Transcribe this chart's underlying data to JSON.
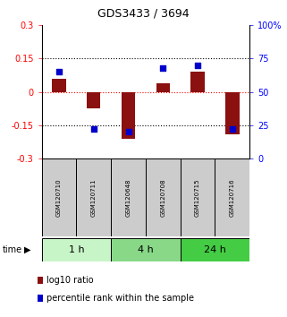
{
  "title": "GDS3433 / 3694",
  "samples": [
    "GSM120710",
    "GSM120711",
    "GSM120648",
    "GSM120708",
    "GSM120715",
    "GSM120716"
  ],
  "log10_ratio": [
    0.06,
    -0.075,
    -0.21,
    0.04,
    0.09,
    -0.19
  ],
  "percentile_rank": [
    65,
    22,
    20,
    68,
    70,
    22
  ],
  "groups": [
    {
      "label": "1 h",
      "indices": [
        0,
        1
      ],
      "color": "#c8f5c8"
    },
    {
      "label": "4 h",
      "indices": [
        2,
        3
      ],
      "color": "#88d888"
    },
    {
      "label": "24 h",
      "indices": [
        4,
        5
      ],
      "color": "#44cc44"
    }
  ],
  "ylim_left": [
    -0.3,
    0.3
  ],
  "ylim_right": [
    0,
    100
  ],
  "yticks_left": [
    -0.3,
    -0.15,
    0.0,
    0.15,
    0.3
  ],
  "yticks_right": [
    0,
    25,
    50,
    75,
    100
  ],
  "bar_color": "#8B1010",
  "dot_color": "#0000CC",
  "bar_width": 0.4,
  "background_color": "#ffffff",
  "sample_box_color": "#cccccc",
  "legend_bar_label": "log10 ratio",
  "legend_dot_label": "percentile rank within the sample",
  "title_fontsize": 9,
  "axis_fontsize": 7,
  "sample_fontsize": 5,
  "time_fontsize": 8,
  "legend_fontsize": 7
}
